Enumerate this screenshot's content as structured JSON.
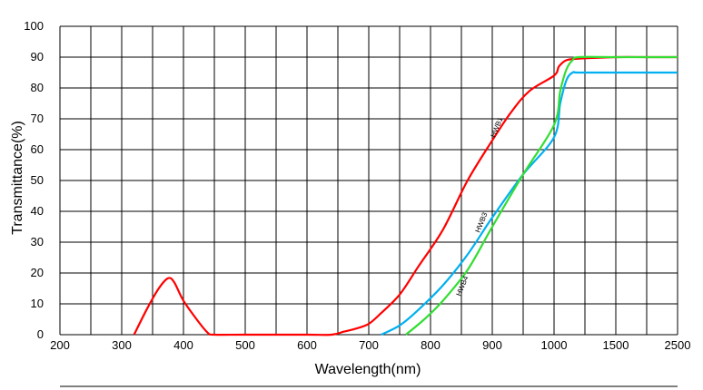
{
  "chart_data": {
    "type": "line",
    "title": "",
    "xlabel": "Wavelength(nm)",
    "ylabel": "Transmittance(%)",
    "ylim": [
      0,
      100
    ],
    "x_ticks": [
      "200",
      "300",
      "400",
      "500",
      "600",
      "700",
      "800",
      "900",
      "1000",
      "1500",
      "2500"
    ],
    "y_ticks": [
      "0",
      "10",
      "20",
      "30",
      "40",
      "50",
      "60",
      "70",
      "80",
      "90",
      "100"
    ],
    "grid": true,
    "colors": {
      "HWB1": "#ff0000",
      "HWB3": "#00b0f0",
      "HWB4": "#33dd33",
      "grid": "#000000"
    },
    "series": [
      {
        "name": "HWB1",
        "points": [
          [
            320,
            0
          ],
          [
            340,
            8
          ],
          [
            360,
            15
          ],
          [
            375,
            18.3
          ],
          [
            385,
            17
          ],
          [
            400,
            11
          ],
          [
            425,
            4
          ],
          [
            440,
            0.5
          ],
          [
            450,
            0
          ],
          [
            500,
            0
          ],
          [
            600,
            0
          ],
          [
            640,
            0
          ],
          [
            660,
            1
          ],
          [
            680,
            2
          ],
          [
            700,
            3.5
          ],
          [
            720,
            7
          ],
          [
            750,
            13
          ],
          [
            780,
            22
          ],
          [
            820,
            34
          ],
          [
            860,
            50
          ],
          [
            900,
            63
          ],
          [
            930,
            72
          ],
          [
            960,
            79
          ],
          [
            1000,
            84
          ],
          [
            1040,
            87
          ],
          [
            1100,
            89
          ],
          [
            1200,
            89.5
          ],
          [
            1500,
            90
          ],
          [
            2000,
            90
          ],
          [
            2500,
            90
          ]
        ]
      },
      {
        "name": "HWB3",
        "points": [
          [
            720,
            0
          ],
          [
            750,
            3
          ],
          [
            780,
            8
          ],
          [
            820,
            16
          ],
          [
            860,
            26
          ],
          [
            900,
            38
          ],
          [
            950,
            52
          ],
          [
            1000,
            64
          ],
          [
            1050,
            75
          ],
          [
            1100,
            82.5
          ],
          [
            1150,
            85
          ],
          [
            1200,
            85
          ],
          [
            1500,
            85
          ],
          [
            2000,
            85
          ],
          [
            2500,
            85
          ]
        ]
      },
      {
        "name": "HWB4",
        "points": [
          [
            760,
            0
          ],
          [
            790,
            5
          ],
          [
            820,
            11
          ],
          [
            860,
            21
          ],
          [
            900,
            35
          ],
          [
            950,
            52
          ],
          [
            1000,
            68
          ],
          [
            1050,
            79
          ],
          [
            1100,
            86
          ],
          [
            1150,
            89
          ],
          [
            1200,
            90
          ],
          [
            1500,
            90
          ],
          [
            2000,
            90
          ],
          [
            2500,
            90
          ]
        ]
      }
    ],
    "annotations": [
      "HWB1",
      "HWB3",
      "HWB4"
    ]
  }
}
